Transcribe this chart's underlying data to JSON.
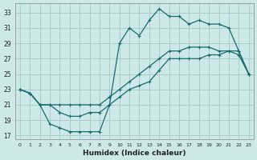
{
  "xlabel": "Humidex (Indice chaleur)",
  "bg_color": "#cce8e8",
  "grid_color": "#aacccc",
  "line_color": "#1a6b6b",
  "xlim": [
    -0.5,
    23.5
  ],
  "ylim": [
    16.5,
    34.2
  ],
  "xticks": [
    0,
    1,
    2,
    3,
    4,
    5,
    6,
    7,
    8,
    9,
    10,
    11,
    12,
    13,
    14,
    15,
    16,
    17,
    18,
    19,
    20,
    21,
    22,
    23
  ],
  "yticks": [
    17,
    19,
    21,
    23,
    25,
    27,
    29,
    31,
    33
  ],
  "line1_x": [
    0,
    1,
    2,
    3,
    4,
    5,
    6,
    7,
    8,
    9,
    10,
    11,
    12,
    13,
    14,
    15,
    16,
    17,
    18,
    19,
    20,
    21,
    22,
    23
  ],
  "line1_y": [
    23,
    22.5,
    21,
    18.5,
    18,
    17.5,
    17.5,
    17.5,
    17.5,
    21,
    29,
    31,
    30,
    32,
    33.5,
    32.5,
    32.5,
    31.5,
    32,
    31.5,
    31.5,
    31,
    28,
    25
  ],
  "line2_x": [
    0,
    1,
    2,
    3,
    4,
    5,
    6,
    7,
    8,
    9,
    10,
    11,
    12,
    13,
    14,
    15,
    16,
    17,
    18,
    19,
    20,
    21,
    22,
    23
  ],
  "line2_y": [
    23,
    22.5,
    21,
    21,
    21,
    21,
    21,
    21,
    21,
    22,
    23,
    24,
    25,
    26,
    27,
    28,
    28,
    28.5,
    28.5,
    28.5,
    28,
    28,
    28,
    25
  ],
  "line3_x": [
    0,
    1,
    2,
    3,
    4,
    5,
    6,
    7,
    8,
    9,
    10,
    11,
    12,
    13,
    14,
    15,
    16,
    17,
    18,
    19,
    20,
    21,
    22,
    23
  ],
  "line3_y": [
    23,
    22.5,
    21,
    21,
    20,
    19.5,
    19.5,
    20,
    20,
    21,
    22,
    23,
    23.5,
    24,
    25.5,
    27,
    27,
    27,
    27,
    27.5,
    27.5,
    28,
    27.5,
    25
  ]
}
